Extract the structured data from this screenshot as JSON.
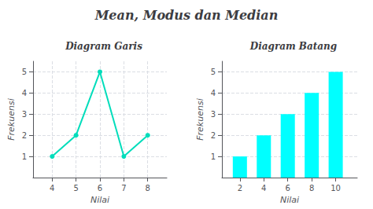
{
  "title": "Mean, Modus dan Median",
  "chart_data": [
    {
      "type": "line",
      "title": "Diagram Garis",
      "x": [
        4,
        5,
        6,
        7,
        8
      ],
      "values": [
        1,
        2,
        5,
        1,
        2
      ],
      "color": "#00DDBB",
      "marker": "circle",
      "x_label": "Nilai",
      "y_label": "Frekuensi",
      "xlim": [
        3.2,
        8.8
      ],
      "xticks": [
        4,
        5,
        6,
        7,
        8
      ],
      "ylim": [
        0,
        5.5
      ],
      "yticks": [
        1,
        2,
        3,
        4,
        5
      ],
      "grid": true
    },
    {
      "type": "bar",
      "title": "Diagram Batang",
      "x": [
        2,
        4,
        6,
        8,
        10
      ],
      "values": [
        1,
        2,
        3,
        4,
        5
      ],
      "color": "#00FFFF",
      "x_label": "Nilai",
      "y_label": "Frekuensi",
      "xlim": [
        0.5,
        11.8
      ],
      "xticks": [
        2,
        4,
        6,
        8,
        10
      ],
      "ylim": [
        0,
        5.5
      ],
      "yticks": [
        1,
        2,
        3,
        4,
        5
      ],
      "grid": "y"
    }
  ]
}
